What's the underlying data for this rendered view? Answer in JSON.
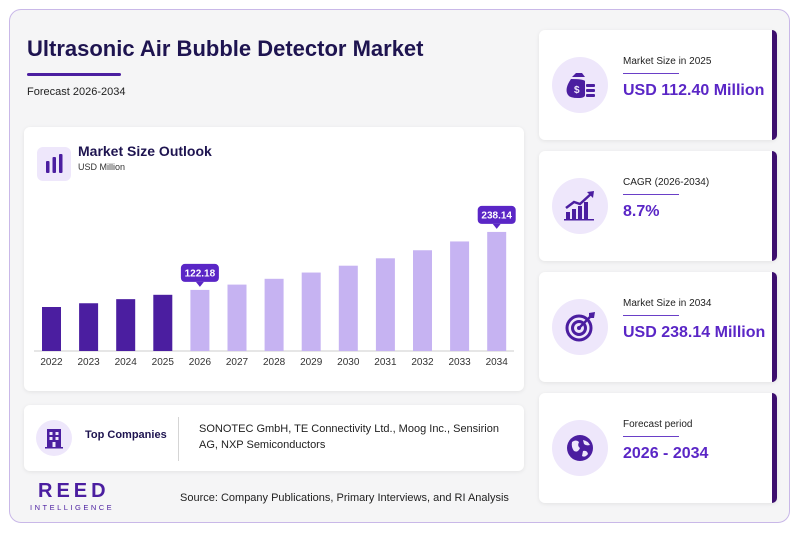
{
  "header": {
    "title": "Ultrasonic Air Bubble Detector Market",
    "subtitle": "Forecast 2026-2034"
  },
  "chart_card": {
    "title": "Market Size Outlook",
    "unit": "USD Million"
  },
  "chart_data": {
    "type": "bar",
    "title": "Market Size Outlook",
    "ylabel": "USD Million",
    "categories": [
      "2022",
      "2023",
      "2024",
      "2025",
      "2026",
      "2027",
      "2028",
      "2029",
      "2030",
      "2031",
      "2032",
      "2033",
      "2034"
    ],
    "values": [
      88.0,
      95.5,
      103.7,
      112.4,
      122.18,
      132.8,
      144.4,
      156.9,
      170.6,
      185.4,
      201.5,
      219.1,
      238.14
    ],
    "highlighted_labels": [
      {
        "category": "2026",
        "label": "122.18"
      },
      {
        "category": "2034",
        "label": "238.14"
      }
    ],
    "historical_color": "#4b1ea0",
    "forecast_color": "#c6b3f2",
    "label_color": "#5a26c6"
  },
  "companies": {
    "label": "Top Companies",
    "text": "SONOTEC GmbH, TE Connectivity Ltd., Moog Inc., Sensirion AG, NXP Semiconductors",
    "icon": "building-icon"
  },
  "footer": {
    "logo_main": "REED",
    "logo_sub": "INTELLIGENCE",
    "source": "Source: Company Publications, Primary Interviews, and RI Analysis"
  },
  "stats": [
    {
      "label": "Market Size in 2025",
      "value": "USD 112.40 Million",
      "icon": "money-bag-icon"
    },
    {
      "label": "CAGR (2026-2034)",
      "value": "8.7%",
      "icon": "growth-chart-icon"
    },
    {
      "label": "Market Size in 2034",
      "value": "USD 238.14 Million",
      "icon": "target-icon"
    },
    {
      "label": "Forecast period",
      "value": "2026 - 2034",
      "icon": "globe-icon"
    }
  ],
  "colors": {
    "accent": "#4b1ea0",
    "title": "#1e1450",
    "value": "#5a26c6"
  }
}
